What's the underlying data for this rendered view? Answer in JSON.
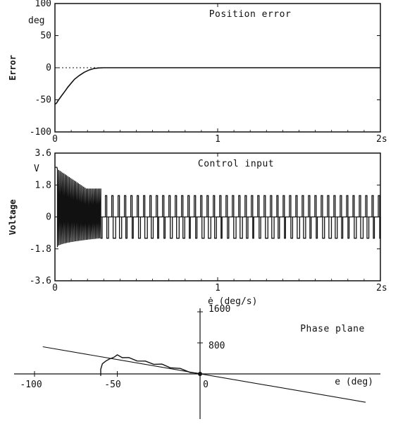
{
  "chart_data": [
    {
      "type": "line",
      "title": "Position error",
      "ylabel": "Error",
      "y_unit": "deg",
      "x_unit": "s",
      "xlim": [
        0,
        2
      ],
      "ylim": [
        -100,
        100
      ],
      "xticks": [
        0,
        1,
        2
      ],
      "xtick_labels": [
        "0",
        "1",
        "2s"
      ],
      "yticks": [
        100,
        50,
        0,
        -50,
        -100
      ],
      "ytick_labels": [
        "100",
        "50",
        "0",
        "-50",
        "-100"
      ],
      "reference_line": {
        "y": 0,
        "style": "dotted"
      },
      "series": [
        {
          "x": [
            0,
            0.01,
            0.02,
            0.04,
            0.06,
            0.08,
            0.1,
            0.12,
            0.15,
            0.18,
            0.21,
            0.24,
            0.27,
            0.3,
            0.6,
            1.0,
            1.5,
            2.0
          ],
          "y": [
            -57,
            -55,
            -51,
            -44,
            -37,
            -30,
            -24,
            -18,
            -12,
            -7,
            -3.5,
            -1.2,
            -0.3,
            0,
            0,
            0,
            0,
            0
          ]
        }
      ]
    },
    {
      "type": "line",
      "title": "Control input",
      "ylabel": "Voltage",
      "y_unit": "V",
      "x_unit": "s",
      "xlim": [
        0,
        2
      ],
      "ylim": [
        -3.6,
        3.6
      ],
      "xticks": [
        0,
        1,
        2
      ],
      "xtick_labels": [
        "0",
        "1",
        "2s"
      ],
      "yticks": [
        3.6,
        1.8,
        0,
        -1.8,
        -3.6
      ],
      "ytick_labels": [
        "3.6",
        "1.8",
        "0",
        "-1.8",
        "-3.6"
      ],
      "reference_line": {
        "y": 0,
        "style": "solid"
      },
      "signal": {
        "description_values": {
          "initial_voltage": 2.8,
          "chatter_phase_end_s": 0.29,
          "chatter_high": [
            2.7,
            1.6
          ],
          "chatter_low_envelope": [
            -1.7,
            -1.2
          ],
          "envelope_recovery_end": -1.2,
          "switching_high": 1.2,
          "switching_low": -1.2,
          "switching_start_s": 0.31,
          "switching_period_s": 0.039
        }
      }
    },
    {
      "type": "line",
      "title": "Phase plane",
      "xlabel": "e (deg)",
      "ylabel": "ė (deg/s)",
      "xticks": [
        -100,
        -50,
        0
      ],
      "xtick_labels": [
        "-100",
        "-50",
        "0"
      ],
      "yticks": [
        1600,
        800
      ],
      "ytick_labels": [
        "1600",
        "800"
      ],
      "xlim": [
        -110,
        110
      ],
      "ylim": [
        -1000,
        1600
      ],
      "sliding_line": {
        "x": [
          -95,
          100
        ],
        "y": [
          700,
          -730
        ]
      },
      "series": [
        {
          "x": [
            -60,
            -60,
            -59,
            -57,
            -55,
            -52,
            -50,
            -47,
            -43,
            -38,
            -33,
            -28,
            -23,
            -18,
            -12,
            -6,
            -2,
            0
          ],
          "y": [
            -50,
            120,
            260,
            330,
            380,
            430,
            470,
            440,
            400,
            355,
            310,
            270,
            230,
            180,
            120,
            60,
            20,
            0
          ]
        }
      ]
    }
  ]
}
